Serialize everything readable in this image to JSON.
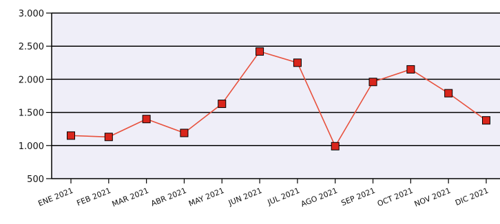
{
  "chart_data": {
    "type": "line",
    "title": "",
    "xlabel": "",
    "ylabel": "",
    "categories": [
      "ENE 2021",
      "FEB 2021",
      "MAR 2021",
      "ABR 2021",
      "MAY 2021",
      "JUN 2021",
      "JUL 2021",
      "AGO 2021",
      "SEP 2021",
      "OCT 2021",
      "NOV 2021",
      "DIC 2021"
    ],
    "series": [
      {
        "values": [
          1150,
          1130,
          1400,
          1190,
          1630,
          2420,
          2250,
          990,
          1960,
          2150,
          1790,
          1380
        ],
        "color": "#e8513d",
        "marker_color": "#d9261c"
      }
    ],
    "ylim": [
      500,
      3000
    ],
    "y_ticks": [
      500,
      1000,
      1500,
      2000,
      2500,
      3000
    ],
    "y_tick_labels": [
      "500",
      "1.000",
      "1.500",
      "2.000",
      "2.500",
      "3.000"
    ],
    "grid": true,
    "legend": "none",
    "plot_background": "#efeef8"
  }
}
